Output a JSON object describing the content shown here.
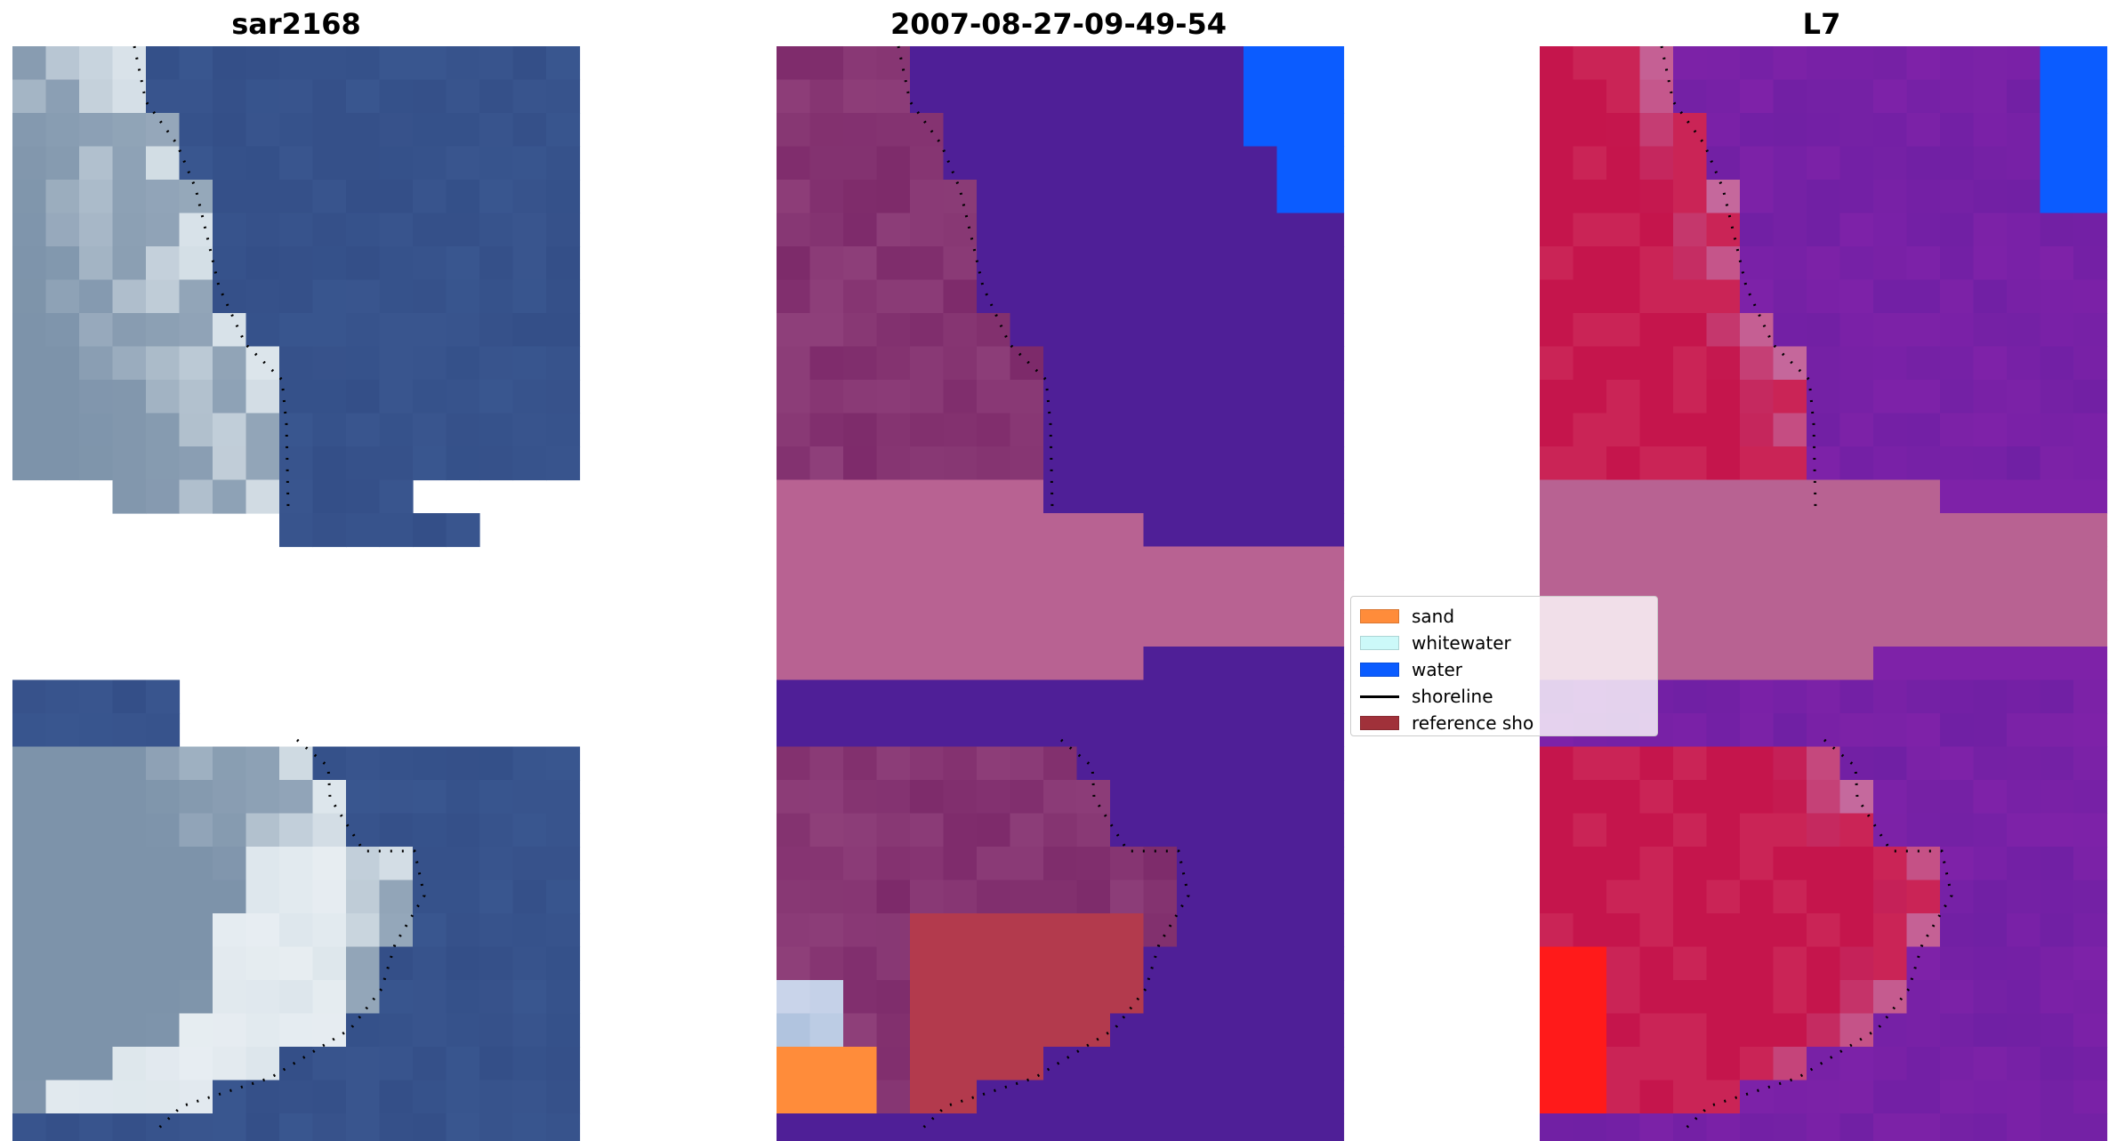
{
  "titles": {
    "left": "sar2168",
    "center": "2007-08-27-09-49-54",
    "right": "L7"
  },
  "legend": {
    "items": [
      {
        "label": "sand",
        "color": "#ff8c3a",
        "kind": "patch"
      },
      {
        "label": "whitewater",
        "color": "#ccf9f9",
        "kind": "patch"
      },
      {
        "label": "water",
        "color": "#0a5cff",
        "kind": "patch"
      },
      {
        "label": "shoreline",
        "color": "#000000",
        "kind": "line"
      },
      {
        "label": "reference sho",
        "color": "#a0313a",
        "kind": "patch"
      }
    ]
  },
  "colors": {
    "sea_rgb": "#344f88",
    "land_rgb": "#7d93aa",
    "whitewater_rgb": "#dde6ec",
    "class_water": "#4f1f97",
    "class_land": "#7d2a6a",
    "class_gap": "#b86292",
    "class_sand_ref": "#b33a4d",
    "nir_water": "#7e22a8",
    "nir_land": "#c5154c",
    "nir_gap": "#b86292",
    "blue_corner": "#0b5cff",
    "red_corner": "#ff1a1a"
  }
}
